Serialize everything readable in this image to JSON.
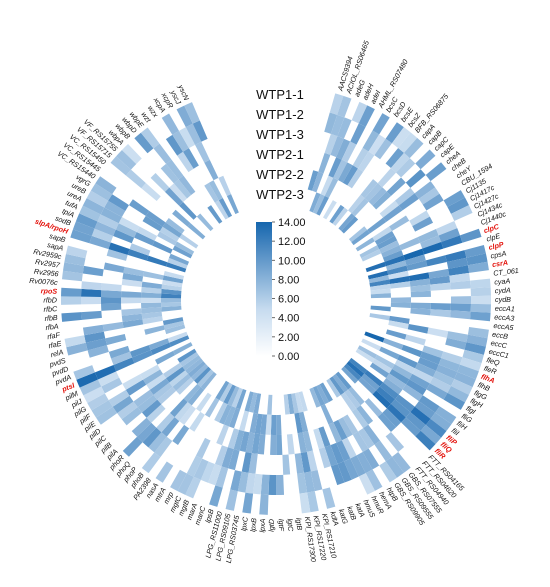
{
  "chart_data": {
    "type": "heatmap",
    "layout": "circular",
    "rings": [
      "WTP1-1",
      "WTP1-2",
      "WTP1-3",
      "WTP2-1",
      "WTP2-2",
      "WTP2-3"
    ],
    "colorbar": {
      "ticks": [
        "14.00",
        "12.00",
        "10.00",
        "8.00",
        "6.00",
        "4.00",
        "2.00",
        "0.00"
      ],
      "range": [
        0,
        14
      ],
      "color_low": "#ffffff",
      "color_high": "#1666ae"
    },
    "highlight_color": "#e3120b",
    "highlighted_genes": [
      "clpC",
      "clpP",
      "csrA",
      "flhA",
      "fliP",
      "fliQ",
      "fliR",
      "ptsI",
      "rpoS",
      "slpA/rpoH"
    ],
    "genes": [
      "AACS9394",
      "ACIOL_RS06465",
      "adeG",
      "adeH",
      "adeI",
      "AHML_RS07480",
      "bcsC",
      "bcsD",
      "bcsE",
      "bcsZ",
      "BFB_RS06875",
      "capA",
      "capB",
      "capC",
      "capE",
      "cheA",
      "cheB",
      "cheY",
      "CBU_1594",
      "Cj1135",
      "Cj1417c",
      "Cj1427c",
      "Cj1434c",
      "Cj1440c",
      "clpC",
      "clpE",
      "clpP",
      "cpsA",
      "csrA",
      "CT_061",
      "cyaA",
      "cydA",
      "cydB",
      "eccA1",
      "eccA3",
      "eccA5",
      "eccB",
      "eccC",
      "eccC1",
      "fleQ",
      "fleR",
      "flhA",
      "flhB",
      "flgG",
      "flgH",
      "flgI",
      "fliG",
      "fliH",
      "fliI",
      "fliP",
      "fliQ",
      "fliR",
      "FTT_RS04165",
      "FTT_RS04620",
      "FTT_RS04940",
      "GBS_RS07555",
      "GBS_RS09555",
      "GBS_RS09905",
      "htpB",
      "hemA",
      "hmuR",
      "hmuS",
      "katA",
      "katB",
      "katG",
      "kdtA",
      "KPI_RS17210",
      "KPI_RS17220",
      "KPI_RS17300",
      "lgtB",
      "lgtC",
      "lgtF",
      "lgtD",
      "lpxA",
      "lpxB",
      "lpxC",
      "LPG_RS03745",
      "LPG_RS09105",
      "LPG_RS11000",
      "lpsB",
      "manC",
      "marA",
      "mgtB",
      "mgtC",
      "mrp",
      "mtrA",
      "nasA",
      "PA2398",
      "phoB",
      "phoP",
      "phoQ",
      "phoR",
      "pilA",
      "pilB",
      "pilC",
      "pilD",
      "pilE",
      "pilF",
      "pilG",
      "pilJ",
      "pilM",
      "ptsI",
      "pvdA",
      "pvdD",
      "pvdS",
      "relA",
      "rfaE",
      "rfaF",
      "rfbA",
      "rfbB",
      "rfbC",
      "rfbD",
      "rpoS",
      "Rv0076c",
      "Rv2956",
      "Rv2957",
      "Rv2959c",
      "sapA",
      "sapB",
      "slpA/rpoH",
      "sodB",
      "tpiA",
      "tufA",
      "ureA",
      "ureB",
      "vgrG",
      "VC_RS15440",
      "VC_RS15445",
      "VC_RS15450",
      "VF_RS15715",
      "VF_RS15755",
      "wbpA",
      "wbpB",
      "wbpD",
      "wbpE",
      "wzt",
      "wzx",
      "xcpA",
      "xcpR",
      "yscJ",
      "yscN"
    ]
  }
}
